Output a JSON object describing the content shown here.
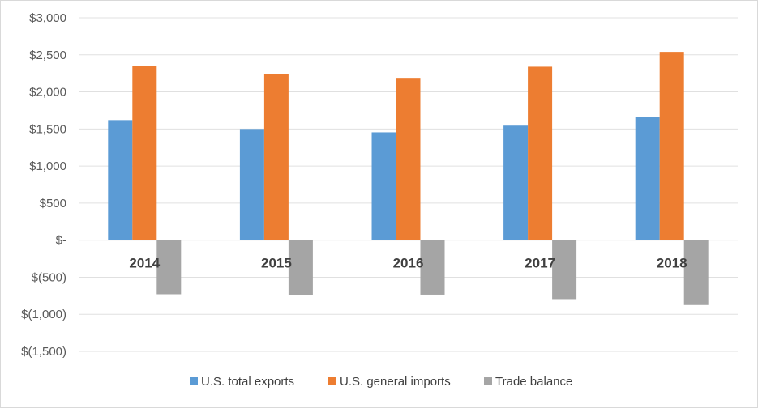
{
  "chart_data": {
    "type": "bar",
    "categories": [
      "2014",
      "2015",
      "2016",
      "2017",
      "2018"
    ],
    "series": [
      {
        "name": "U.S. total exports",
        "values": [
          1620,
          1500,
          1455,
          1545,
          1665
        ],
        "color": "#5b9bd5"
      },
      {
        "name": "U.S. general imports",
        "values": [
          2350,
          2245,
          2190,
          2340,
          2540
        ],
        "color": "#ed7d31"
      },
      {
        "name": "Trade balance",
        "values": [
          -730,
          -745,
          -735,
          -795,
          -875
        ],
        "color": "#a5a5a5"
      }
    ],
    "ylim": [
      -1500,
      3000
    ],
    "yticks": [
      3000,
      2500,
      2000,
      1500,
      1000,
      500,
      0,
      -500,
      -1000,
      -1500
    ],
    "ytick_labels": [
      "$3,000",
      "$2,500",
      "$2,000",
      "$1,500",
      "$1,000",
      "$500",
      "$-",
      "$(500)",
      "$(1,000)",
      "$(1,500)"
    ],
    "grid": true,
    "legend_position": "bottom",
    "title": "",
    "xlabel": "",
    "ylabel": ""
  }
}
